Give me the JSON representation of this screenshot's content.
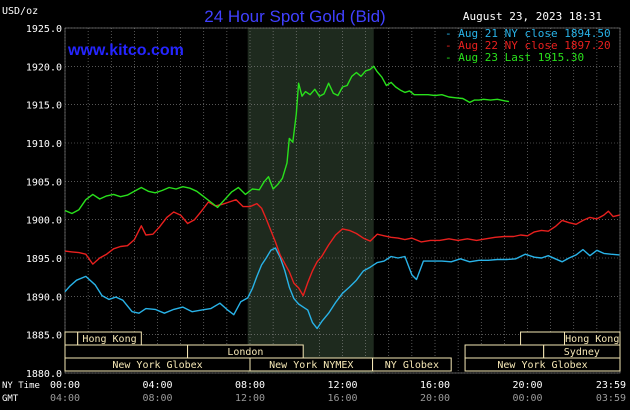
{
  "header": {
    "unit": "USD/oz",
    "title": "24 Hour Spot Gold (Bid)",
    "date": "August 23, 2023 18:31",
    "site": "www.kitco.com"
  },
  "colors": {
    "background": "#000000",
    "grid": "#8a8a8a",
    "highlight": "#1e2a1e",
    "title": "#4040ff",
    "session": "#f5e7b5",
    "aug21": "#29b3e8",
    "aug22": "#e8201e",
    "aug23": "#29e01c"
  },
  "axis_labels": {
    "ny_time": "NY Time",
    "gmt": "GMT"
  },
  "sessions": {
    "hong_kong_left": "Hong Kong",
    "london": "London",
    "new_york_globex_left": "New York Globex",
    "new_york_nymex": "New York NYMEX",
    "ny_globex": "NY Globex",
    "hong_kong_right": "Hong Kong",
    "sydney": "Sydney",
    "new_york_globex_right": "New York Globex"
  },
  "chart_data": {
    "type": "line",
    "title": "24 Hour Spot Gold (Bid)",
    "ylabel": "USD/oz",
    "ylim": [
      1880,
      1925
    ],
    "xlim": [
      0,
      24
    ],
    "y_ticks": [
      "1925.0",
      "1920.0",
      "1915.0",
      "1910.0",
      "1905.0",
      "1900.0",
      "1895.0",
      "1890.0",
      "1885.0",
      "1880.0"
    ],
    "x_ticks_ny": [
      "00:00",
      "04:00",
      "08:00",
      "12:00",
      "16:00",
      "20:00",
      "23:59"
    ],
    "x_ticks_gmt": [
      "04:00",
      "08:00",
      "12:00",
      "16:00",
      "20:00",
      "00:00",
      "03:59"
    ],
    "grid": true,
    "highlight_range": [
      7.9,
      13.35
    ],
    "series": [
      {
        "name": "Aug 21 NY close 1894.50",
        "points": [
          [
            0,
            1890.6
          ],
          [
            0.2,
            1891.3
          ],
          [
            0.5,
            1892.1
          ],
          [
            0.9,
            1892.6
          ],
          [
            1.3,
            1891.5
          ],
          [
            1.6,
            1890.1
          ],
          [
            1.9,
            1889.6
          ],
          [
            2.2,
            1889.9
          ],
          [
            2.5,
            1889.5
          ],
          [
            2.9,
            1888.0
          ],
          [
            3.2,
            1887.8
          ],
          [
            3.5,
            1888.4
          ],
          [
            3.9,
            1888.3
          ],
          [
            4.3,
            1887.8
          ],
          [
            4.7,
            1888.3
          ],
          [
            5.1,
            1888.6
          ],
          [
            5.5,
            1888.0
          ],
          [
            5.9,
            1888.2
          ],
          [
            6.3,
            1888.4
          ],
          [
            6.7,
            1889.1
          ],
          [
            7.0,
            1888.3
          ],
          [
            7.3,
            1887.6
          ],
          [
            7.6,
            1889.3
          ],
          [
            7.9,
            1889.8
          ],
          [
            8.1,
            1891.0
          ],
          [
            8.3,
            1892.6
          ],
          [
            8.5,
            1894.1
          ],
          [
            8.7,
            1895.0
          ],
          [
            8.9,
            1896.0
          ],
          [
            9.1,
            1896.3
          ],
          [
            9.3,
            1895.1
          ],
          [
            9.5,
            1893.4
          ],
          [
            9.7,
            1891.2
          ],
          [
            9.9,
            1889.7
          ],
          [
            10.1,
            1889.0
          ],
          [
            10.3,
            1888.6
          ],
          [
            10.5,
            1888.2
          ],
          [
            10.7,
            1886.6
          ],
          [
            10.9,
            1885.8
          ],
          [
            11.1,
            1886.7
          ],
          [
            11.4,
            1887.8
          ],
          [
            11.7,
            1889.2
          ],
          [
            12.0,
            1890.4
          ],
          [
            12.3,
            1891.2
          ],
          [
            12.6,
            1892.1
          ],
          [
            12.9,
            1893.3
          ],
          [
            13.2,
            1893.8
          ],
          [
            13.5,
            1894.4
          ],
          [
            13.8,
            1894.6
          ],
          [
            14.1,
            1895.2
          ],
          [
            14.4,
            1895.0
          ],
          [
            14.7,
            1895.2
          ],
          [
            15.0,
            1892.8
          ],
          [
            15.2,
            1892.2
          ],
          [
            15.5,
            1894.6
          ],
          [
            15.9,
            1894.6
          ],
          [
            16.3,
            1894.6
          ],
          [
            16.7,
            1894.5
          ],
          [
            17.1,
            1894.9
          ],
          [
            17.5,
            1894.5
          ],
          [
            17.9,
            1894.7
          ],
          [
            18.3,
            1894.7
          ],
          [
            18.7,
            1894.8
          ],
          [
            19.1,
            1894.8
          ],
          [
            19.5,
            1894.9
          ],
          [
            19.9,
            1895.5
          ],
          [
            20.3,
            1895.1
          ],
          [
            20.6,
            1895.0
          ],
          [
            20.9,
            1895.3
          ],
          [
            21.2,
            1894.9
          ],
          [
            21.5,
            1894.5
          ],
          [
            21.8,
            1895.0
          ],
          [
            22.1,
            1895.4
          ],
          [
            22.4,
            1896.1
          ],
          [
            22.7,
            1895.3
          ],
          [
            23.0,
            1896.0
          ],
          [
            23.3,
            1895.6
          ],
          [
            23.6,
            1895.5
          ],
          [
            23.98,
            1895.4
          ]
        ]
      },
      {
        "name": "Aug 22 NY close 1897.20",
        "points": [
          [
            0,
            1895.9
          ],
          [
            0.3,
            1895.8
          ],
          [
            0.6,
            1895.7
          ],
          [
            0.9,
            1895.5
          ],
          [
            1.2,
            1894.2
          ],
          [
            1.5,
            1895.0
          ],
          [
            1.8,
            1895.5
          ],
          [
            2.1,
            1896.2
          ],
          [
            2.4,
            1896.5
          ],
          [
            2.7,
            1896.6
          ],
          [
            3.0,
            1897.4
          ],
          [
            3.3,
            1899.2
          ],
          [
            3.5,
            1898.0
          ],
          [
            3.8,
            1898.1
          ],
          [
            4.1,
            1899.1
          ],
          [
            4.4,
            1900.3
          ],
          [
            4.7,
            1901.0
          ],
          [
            5.0,
            1900.6
          ],
          [
            5.3,
            1899.5
          ],
          [
            5.6,
            1900.0
          ],
          [
            5.9,
            1901.1
          ],
          [
            6.2,
            1902.3
          ],
          [
            6.5,
            1901.8
          ],
          [
            6.8,
            1902.0
          ],
          [
            7.1,
            1902.3
          ],
          [
            7.4,
            1902.6
          ],
          [
            7.7,
            1901.7
          ],
          [
            8.0,
            1901.7
          ],
          [
            8.3,
            1902.1
          ],
          [
            8.5,
            1901.5
          ],
          [
            8.7,
            1900.1
          ],
          [
            8.9,
            1898.6
          ],
          [
            9.1,
            1897.1
          ],
          [
            9.3,
            1895.4
          ],
          [
            9.5,
            1894.3
          ],
          [
            9.7,
            1893.2
          ],
          [
            9.9,
            1891.7
          ],
          [
            10.1,
            1891.1
          ],
          [
            10.3,
            1890.1
          ],
          [
            10.5,
            1891.8
          ],
          [
            10.7,
            1893.3
          ],
          [
            10.9,
            1894.5
          ],
          [
            11.1,
            1895.2
          ],
          [
            11.4,
            1896.7
          ],
          [
            11.7,
            1898.0
          ],
          [
            12.0,
            1898.8
          ],
          [
            12.3,
            1898.6
          ],
          [
            12.6,
            1898.2
          ],
          [
            12.9,
            1897.6
          ],
          [
            13.2,
            1897.2
          ],
          [
            13.5,
            1898.1
          ],
          [
            13.8,
            1897.9
          ],
          [
            14.1,
            1897.7
          ],
          [
            14.4,
            1897.6
          ],
          [
            14.7,
            1897.4
          ],
          [
            15.0,
            1897.6
          ],
          [
            15.4,
            1897.1
          ],
          [
            15.8,
            1897.3
          ],
          [
            16.2,
            1897.3
          ],
          [
            16.6,
            1897.5
          ],
          [
            17.0,
            1897.3
          ],
          [
            17.4,
            1897.5
          ],
          [
            17.8,
            1897.3
          ],
          [
            18.2,
            1897.5
          ],
          [
            18.6,
            1897.7
          ],
          [
            19.0,
            1897.8
          ],
          [
            19.4,
            1897.8
          ],
          [
            19.7,
            1898.0
          ],
          [
            20.0,
            1897.9
          ],
          [
            20.3,
            1898.4
          ],
          [
            20.6,
            1898.6
          ],
          [
            20.9,
            1898.5
          ],
          [
            21.2,
            1899.1
          ],
          [
            21.5,
            1899.9
          ],
          [
            21.8,
            1899.6
          ],
          [
            22.1,
            1899.4
          ],
          [
            22.4,
            1899.9
          ],
          [
            22.7,
            1900.3
          ],
          [
            23.0,
            1900.1
          ],
          [
            23.3,
            1900.6
          ],
          [
            23.5,
            1901.1
          ],
          [
            23.7,
            1900.4
          ],
          [
            23.98,
            1900.6
          ]
        ]
      },
      {
        "name": "Aug 23 Last 1915.30",
        "points": [
          [
            0,
            1901.2
          ],
          [
            0.3,
            1900.8
          ],
          [
            0.6,
            1901.3
          ],
          [
            0.9,
            1902.6
          ],
          [
            1.2,
            1903.3
          ],
          [
            1.5,
            1902.7
          ],
          [
            1.8,
            1903.1
          ],
          [
            2.1,
            1903.3
          ],
          [
            2.4,
            1903.0
          ],
          [
            2.7,
            1903.2
          ],
          [
            3.0,
            1903.7
          ],
          [
            3.3,
            1904.2
          ],
          [
            3.6,
            1903.7
          ],
          [
            3.9,
            1903.5
          ],
          [
            4.2,
            1903.8
          ],
          [
            4.5,
            1904.2
          ],
          [
            4.8,
            1904.0
          ],
          [
            5.1,
            1904.3
          ],
          [
            5.4,
            1904.1
          ],
          [
            5.7,
            1903.7
          ],
          [
            6.0,
            1903.0
          ],
          [
            6.3,
            1902.3
          ],
          [
            6.6,
            1901.6
          ],
          [
            6.9,
            1902.6
          ],
          [
            7.2,
            1903.6
          ],
          [
            7.5,
            1904.2
          ],
          [
            7.8,
            1903.3
          ],
          [
            8.1,
            1904.0
          ],
          [
            8.4,
            1903.9
          ],
          [
            8.6,
            1904.9
          ],
          [
            8.8,
            1905.6
          ],
          [
            9.0,
            1904.0
          ],
          [
            9.2,
            1904.6
          ],
          [
            9.4,
            1905.4
          ],
          [
            9.6,
            1907.4
          ],
          [
            9.7,
            1910.6
          ],
          [
            9.85,
            1910.1
          ],
          [
            10.0,
            1913.8
          ],
          [
            10.1,
            1917.8
          ],
          [
            10.25,
            1916.1
          ],
          [
            10.4,
            1916.7
          ],
          [
            10.6,
            1916.3
          ],
          [
            10.8,
            1917.0
          ],
          [
            11.0,
            1916.1
          ],
          [
            11.2,
            1916.4
          ],
          [
            11.4,
            1917.8
          ],
          [
            11.6,
            1916.5
          ],
          [
            11.8,
            1916.2
          ],
          [
            12.0,
            1917.3
          ],
          [
            12.2,
            1917.5
          ],
          [
            12.4,
            1918.7
          ],
          [
            12.6,
            1919.2
          ],
          [
            12.8,
            1918.7
          ],
          [
            13.0,
            1919.4
          ],
          [
            13.2,
            1919.6
          ],
          [
            13.35,
            1920.0
          ],
          [
            13.5,
            1919.3
          ],
          [
            13.7,
            1918.6
          ],
          [
            13.9,
            1917.5
          ],
          [
            14.1,
            1917.9
          ],
          [
            14.3,
            1917.3
          ],
          [
            14.5,
            1916.9
          ],
          [
            14.7,
            1916.6
          ],
          [
            14.9,
            1916.8
          ],
          [
            15.1,
            1916.3
          ],
          [
            15.4,
            1916.3
          ],
          [
            15.7,
            1916.3
          ],
          [
            16.0,
            1916.2
          ],
          [
            16.3,
            1916.3
          ],
          [
            16.6,
            1916.0
          ],
          [
            16.9,
            1915.9
          ],
          [
            17.2,
            1915.8
          ],
          [
            17.5,
            1915.3
          ],
          [
            17.7,
            1915.6
          ],
          [
            17.9,
            1915.6
          ],
          [
            18.1,
            1915.7
          ],
          [
            18.4,
            1915.6
          ],
          [
            18.7,
            1915.7
          ],
          [
            19.0,
            1915.5
          ],
          [
            19.2,
            1915.4
          ]
        ]
      }
    ]
  }
}
